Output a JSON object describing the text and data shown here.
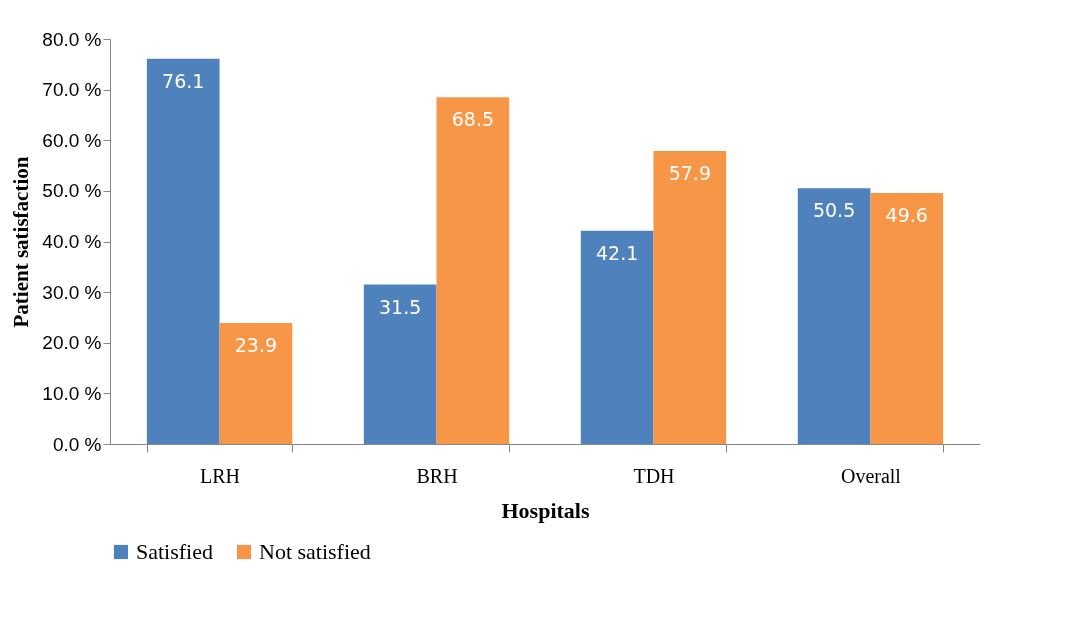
{
  "chart_data": {
    "type": "bar",
    "xlabel": "Hospitals",
    "ylabel": "Patient satisfaction",
    "categories": [
      "LRH",
      "BRH",
      "TDH",
      "Overall"
    ],
    "series": [
      {
        "name": "Satisfied",
        "color": "#4f81bd",
        "values": [
          76.1,
          31.5,
          42.1,
          50.5
        ]
      },
      {
        "name": "Not satisfied",
        "color": "#f79646",
        "values": [
          23.9,
          68.5,
          57.9,
          49.6
        ]
      }
    ],
    "ylim": [
      0,
      80
    ],
    "yticks": [
      {
        "value": 0,
        "label": "0.0 %"
      },
      {
        "value": 10,
        "label": "10.0 %"
      },
      {
        "value": 20,
        "label": "20.0 %"
      },
      {
        "value": 30,
        "label": "30.0 %"
      },
      {
        "value": 40,
        "label": "40.0 %"
      },
      {
        "value": 50,
        "label": "50.0 %"
      },
      {
        "value": 60,
        "label": "60.0 %"
      },
      {
        "value": 70,
        "label": "70.0 %"
      },
      {
        "value": 80,
        "label": "80.0 %"
      }
    ],
    "grid": false,
    "legend": "bottom",
    "data_labels": true
  }
}
